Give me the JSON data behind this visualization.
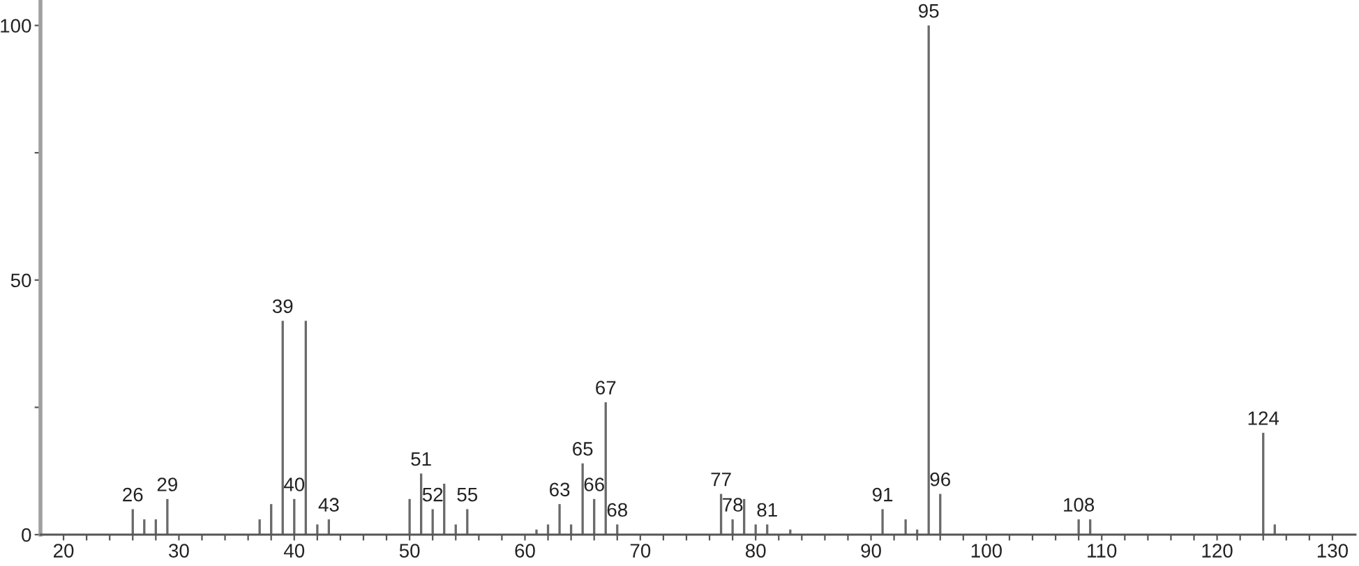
{
  "chart_data": {
    "type": "bar",
    "x": [
      26,
      27,
      28,
      29,
      37,
      38,
      39,
      40,
      41,
      42,
      43,
      50,
      51,
      52,
      53,
      54,
      55,
      61,
      62,
      63,
      64,
      65,
      66,
      67,
      68,
      77,
      78,
      79,
      80,
      81,
      83,
      91,
      93,
      94,
      95,
      96,
      108,
      109,
      124,
      125
    ],
    "values": [
      5,
      3,
      3,
      7,
      3,
      6,
      42,
      7,
      42,
      2,
      3,
      7,
      12,
      5,
      10,
      2,
      5,
      1,
      2,
      6,
      2,
      14,
      7,
      26,
      2,
      8,
      3,
      7,
      2,
      2,
      1,
      5,
      3,
      1,
      100,
      8,
      3,
      3,
      20,
      2
    ],
    "color": "#6a6a6a",
    "xlim": [
      18,
      132
    ],
    "ylim": [
      0,
      105
    ],
    "xticks": [
      20,
      {
        "value": 22,
        "label": null
      },
      {
        "value": 24,
        "label": null
      },
      {
        "value": 26,
        "label": null
      },
      {
        "value": 28,
        "label": null
      },
      30,
      {
        "value": 32,
        "label": null
      },
      {
        "value": 34,
        "label": null
      },
      {
        "value": 36,
        "label": null
      },
      {
        "value": 38,
        "label": null
      },
      40,
      {
        "value": 42,
        "label": null
      },
      {
        "value": 44,
        "label": null
      },
      {
        "value": 46,
        "label": null
      },
      {
        "value": 48,
        "label": null
      },
      50,
      {
        "value": 52,
        "label": null
      },
      {
        "value": 54,
        "label": null
      },
      {
        "value": 56,
        "label": null
      },
      {
        "value": 58,
        "label": null
      },
      60,
      {
        "value": 62,
        "label": null
      },
      {
        "value": 64,
        "label": null
      },
      {
        "value": 66,
        "label": null
      },
      {
        "value": 68,
        "label": null
      },
      70,
      {
        "value": 72,
        "label": null
      },
      {
        "value": 74,
        "label": null
      },
      {
        "value": 76,
        "label": null
      },
      {
        "value": 78,
        "label": null
      },
      80,
      {
        "value": 82,
        "label": null
      },
      {
        "value": 84,
        "label": null
      },
      {
        "value": 86,
        "label": null
      },
      {
        "value": 88,
        "label": null
      },
      90,
      {
        "value": 92,
        "label": null
      },
      {
        "value": 94,
        "label": null
      },
      {
        "value": 96,
        "label": null
      },
      {
        "value": 98,
        "label": null
      },
      100,
      {
        "value": 102,
        "label": null
      },
      {
        "value": 104,
        "label": null
      },
      {
        "value": 106,
        "label": null
      },
      {
        "value": 108,
        "label": null
      },
      110,
      {
        "value": 112,
        "label": null
      },
      {
        "value": 114,
        "label": null
      },
      {
        "value": 116,
        "label": null
      },
      {
        "value": 118,
        "label": null
      },
      120,
      {
        "value": 122,
        "label": null
      },
      {
        "value": 124,
        "label": null
      },
      {
        "value": 126,
        "label": null
      },
      {
        "value": 128,
        "label": null
      },
      130
    ],
    "yticks": [
      0,
      {
        "value": 25,
        "label": null
      },
      50,
      {
        "value": 75,
        "label": null
      },
      100
    ],
    "annotations": [
      {
        "text": "26",
        "x": 26,
        "y": 5
      },
      {
        "text": "29",
        "x": 29,
        "y": 7
      },
      {
        "text": "39",
        "x": 39,
        "y": 42
      },
      {
        "text": "40",
        "x": 40,
        "y": 7
      },
      {
        "text": "43",
        "x": 43,
        "y": 3
      },
      {
        "text": "51",
        "x": 51,
        "y": 12
      },
      {
        "text": "52",
        "x": 52,
        "y": 5
      },
      {
        "text": "55",
        "x": 55,
        "y": 5
      },
      {
        "text": "63",
        "x": 63,
        "y": 6
      },
      {
        "text": "65",
        "x": 65,
        "y": 14
      },
      {
        "text": "66",
        "x": 66,
        "y": 7
      },
      {
        "text": "67",
        "x": 67,
        "y": 26
      },
      {
        "text": "68",
        "x": 68,
        "y": 2
      },
      {
        "text": "77",
        "x": 77,
        "y": 8
      },
      {
        "text": "78",
        "x": 78,
        "y": 3
      },
      {
        "text": "81",
        "x": 81,
        "y": 2
      },
      {
        "text": "91",
        "x": 91,
        "y": 5
      },
      {
        "text": "95",
        "x": 95,
        "y": 100
      },
      {
        "text": "96",
        "x": 96,
        "y": 8
      },
      {
        "text": "108",
        "x": 108,
        "y": 3
      },
      {
        "text": "124",
        "x": 124,
        "y": 20
      }
    ],
    "grid": false
  }
}
